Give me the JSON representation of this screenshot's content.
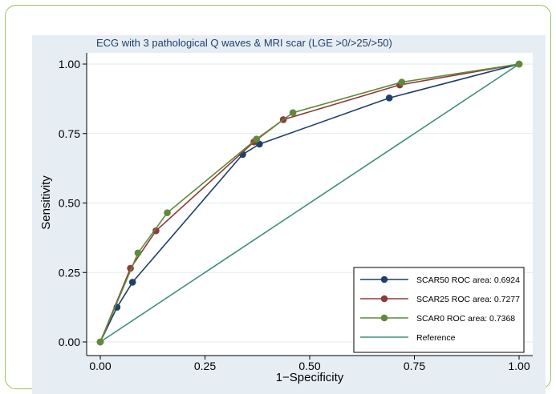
{
  "chart_data": {
    "type": "line",
    "title": "ECG with 3 pathological Q waves & MRI scar (LGE >0/>25/>50)",
    "xlabel": "1−Specificity",
    "ylabel": "Sensitivity",
    "xlim": [
      0,
      1
    ],
    "ylim": [
      0,
      1
    ],
    "xticks": [
      "0.00",
      "0.25",
      "0.50",
      "0.75",
      "1.00"
    ],
    "yticks": [
      "0.00",
      "0.25",
      "0.50",
      "0.75",
      "1.00"
    ],
    "grid": true,
    "legend_position": "bottom-right",
    "series": [
      {
        "name": "SCAR50 ROC area: 0.6924",
        "color": "#1f3f6e",
        "x": [
          0,
          0.04,
          0.077,
          0.34,
          0.38,
          0.69,
          1.0
        ],
        "y": [
          0,
          0.125,
          0.215,
          0.675,
          0.712,
          0.878,
          1.0
        ]
      },
      {
        "name": "SCAR25 ROC area: 0.7277",
        "color": "#8f3a3a",
        "x": [
          0,
          0.072,
          0.133,
          0.367,
          0.437,
          0.715,
          1.0
        ],
        "y": [
          0,
          0.265,
          0.4,
          0.72,
          0.8,
          0.925,
          1.0
        ]
      },
      {
        "name": "SCAR0 ROC area: 0.7368",
        "color": "#5f8a3a",
        "x": [
          0,
          0.09,
          0.16,
          0.373,
          0.46,
          0.72,
          1.0
        ],
        "y": [
          0,
          0.32,
          0.465,
          0.73,
          0.825,
          0.935,
          1.0
        ]
      },
      {
        "name": "Reference",
        "color": "#3f8f7f",
        "x": [
          0,
          1
        ],
        "y": [
          0,
          1
        ],
        "markers": false
      }
    ]
  }
}
